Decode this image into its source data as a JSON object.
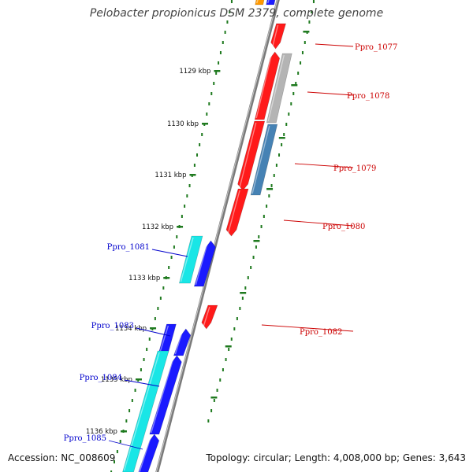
{
  "title": "Pelobacter propionicus DSM 2379, complete genome",
  "accession": "Accession: NC_008609",
  "topology": "Topology: circular; Length: 4,008,000 bp; Genes: 3,643",
  "colors": {
    "backbone": "#8c8c8c",
    "tick": "#1f7a1f",
    "forward_label": "#0000cc",
    "reverse_label": "#cc0000",
    "gene_red": "#ff1a1a",
    "gene_blue": "#1a1aff",
    "gene_cyan": "#19e6e6",
    "gene_grey": "#b4b4b4",
    "gene_steel": "#4682b4",
    "gene_orange": "#ff9900"
  },
  "ticks": [
    "1129 kbp",
    "1130 kbp",
    "1131 kbp",
    "1132 kbp",
    "1133 kbp",
    "1134 kbp",
    "1135 kbp",
    "1136 kbp"
  ],
  "gene_labels": {
    "forward": [
      "Ppro_1081",
      "Ppro_1083",
      "Ppro_1084",
      "Ppro_1085"
    ],
    "reverse": [
      "Ppro_1077",
      "Ppro_1078",
      "Ppro_1079",
      "Ppro_1080",
      "Ppro_1082"
    ]
  }
}
